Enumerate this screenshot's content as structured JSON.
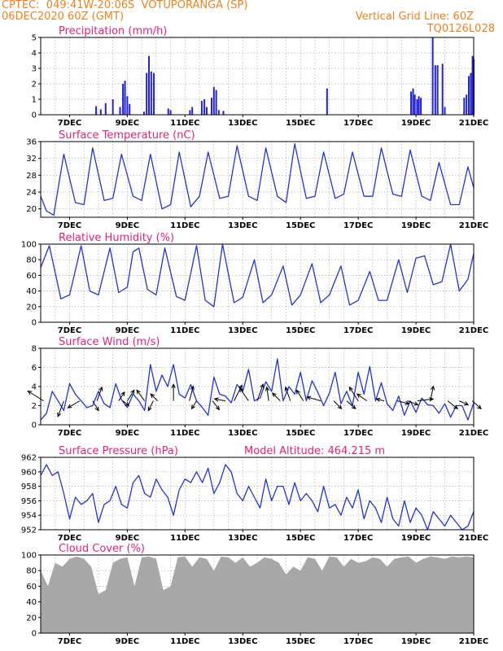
{
  "header": {
    "line1": "CPTEC:  049:41W-20:06S  VOTUPORANGA (SP)",
    "line2": "06DEC2020 60Z (GMT)",
    "grid_note": "Vertical Grid Line: 60Z",
    "code": "TQ0126L028"
  },
  "colors": {
    "header": "#f08020",
    "title": "#e8207a",
    "line": "#2233dd",
    "bar": "#2222dd",
    "cloud": "#a8a8a8"
  },
  "chart_data": [
    {
      "type": "bar",
      "title": "Precipitation (mm/h)",
      "ylim": [
        0,
        5
      ],
      "yticks": [
        "0",
        "1",
        "2",
        "3",
        "4",
        "5"
      ],
      "xticks": [
        "7DEC",
        "9DEC",
        "11DEC",
        "13DEC",
        "15DEC",
        "17DEC",
        "19DEC",
        "21DEC"
      ],
      "bars": [
        [
          1.92,
          0.55
        ],
        [
          2.08,
          0.35
        ],
        [
          2.25,
          0.75
        ],
        [
          2.5,
          1.0
        ],
        [
          2.75,
          0.5
        ],
        [
          2.85,
          2.0
        ],
        [
          2.92,
          2.2
        ],
        [
          3.0,
          1.2
        ],
        [
          3.08,
          0.7
        ],
        [
          3.58,
          0.2
        ],
        [
          3.67,
          2.7
        ],
        [
          3.75,
          3.8
        ],
        [
          3.83,
          2.8
        ],
        [
          3.92,
          2.7
        ],
        [
          4.42,
          0.4
        ],
        [
          4.5,
          0.3
        ],
        [
          5.17,
          0.3
        ],
        [
          5.25,
          0.5
        ],
        [
          5.58,
          0.9
        ],
        [
          5.67,
          1.0
        ],
        [
          5.75,
          0.5
        ],
        [
          5.92,
          1.1
        ],
        [
          6.0,
          1.8
        ],
        [
          6.08,
          1.6
        ],
        [
          6.17,
          0.3
        ],
        [
          6.33,
          0.25
        ],
        [
          9.92,
          1.7
        ],
        [
          12.83,
          1.5
        ],
        [
          12.9,
          1.7
        ],
        [
          12.96,
          1.3
        ],
        [
          13.04,
          1.0
        ],
        [
          13.1,
          1.2
        ],
        [
          13.17,
          1.1
        ],
        [
          13.58,
          5.0
        ],
        [
          13.67,
          3.2
        ],
        [
          13.75,
          3.2
        ],
        [
          13.92,
          3.3
        ],
        [
          14.0,
          0.5
        ],
        [
          14.67,
          1.1
        ],
        [
          14.75,
          1.3
        ],
        [
          14.83,
          2.5
        ],
        [
          14.9,
          2.7
        ],
        [
          14.96,
          3.8
        ],
        [
          15.0,
          3.6
        ]
      ]
    },
    {
      "type": "line",
      "title": "Surface Temperature (nC)",
      "ylim": [
        18,
        36
      ],
      "yticks": [
        "20",
        "24",
        "28",
        "32",
        "36"
      ],
      "xticks": [
        "7DEC",
        "9DEC",
        "11DEC",
        "13DEC",
        "15DEC",
        "17DEC",
        "19DEC",
        "21DEC"
      ],
      "series": [
        {
          "x": [
            0,
            0.2,
            0.45,
            0.8,
            1.2,
            1.5,
            1.8,
            2.2,
            2.5,
            2.8,
            3.2,
            3.5,
            3.8,
            4.2,
            4.5,
            4.8,
            5.2,
            5.5,
            5.8,
            6.2,
            6.5,
            6.8,
            7.2,
            7.5,
            7.8,
            8.2,
            8.5,
            8.8,
            9.2,
            9.5,
            9.8,
            10.2,
            10.5,
            10.8,
            11.2,
            11.5,
            11.8,
            12.2,
            12.5,
            12.8,
            13.2,
            13.5,
            13.8,
            14.2,
            14.5,
            14.8,
            15.0
          ],
          "y": [
            23,
            19.5,
            18.5,
            33,
            21.5,
            21,
            34.5,
            22,
            22.5,
            33,
            23,
            22,
            33,
            20,
            21,
            33.5,
            20.5,
            23,
            33.5,
            22.5,
            23,
            35,
            23,
            22,
            34.5,
            23,
            21.5,
            35.5,
            22.5,
            23,
            33.5,
            22.5,
            23.5,
            33.5,
            23,
            23,
            34.5,
            23.5,
            23,
            34,
            23,
            22,
            31,
            21,
            21,
            30,
            25
          ]
        }
      ]
    },
    {
      "type": "line",
      "title": "Relative Humidity (%)",
      "ylim": [
        0,
        100
      ],
      "yticks": [
        "0",
        "20",
        "40",
        "60",
        "80",
        "100"
      ],
      "xticks": [
        "7DEC",
        "9DEC",
        "11DEC",
        "13DEC",
        "15DEC",
        "17DEC",
        "19DEC",
        "21DEC"
      ],
      "series": [
        {
          "x": [
            0,
            0.3,
            0.7,
            1.0,
            1.4,
            1.7,
            2.0,
            2.4,
            2.7,
            3.0,
            3.2,
            3.4,
            3.7,
            4.0,
            4.3,
            4.7,
            5.0,
            5.4,
            5.7,
            6.0,
            6.3,
            6.7,
            7.0,
            7.4,
            7.7,
            8.0,
            8.4,
            8.7,
            9.0,
            9.4,
            9.7,
            10.0,
            10.4,
            10.7,
            11.0,
            11.4,
            11.7,
            12.0,
            12.4,
            12.7,
            13.0,
            13.3,
            13.6,
            13.9,
            14.2,
            14.5,
            14.8,
            15.0
          ],
          "y": [
            70,
            98,
            30,
            35,
            98,
            40,
            35,
            95,
            38,
            45,
            90,
            95,
            42,
            35,
            95,
            33,
            28,
            98,
            28,
            20,
            100,
            25,
            32,
            80,
            25,
            35,
            72,
            22,
            35,
            75,
            25,
            35,
            72,
            22,
            28,
            65,
            28,
            28,
            80,
            38,
            82,
            85,
            48,
            52,
            100,
            40,
            55,
            88
          ]
        }
      ]
    },
    {
      "type": "line",
      "title": "Surface Wind (m/s)",
      "ylim": [
        0,
        8
      ],
      "yticks": [
        "0",
        "2",
        "4",
        "6",
        "8"
      ],
      "xticks": [
        "7DEC",
        "9DEC",
        "11DEC",
        "13DEC",
        "15DEC",
        "17DEC",
        "19DEC",
        "21DEC"
      ],
      "series": [
        {
          "x": [
            0,
            0.2,
            0.4,
            0.6,
            0.8,
            1.0,
            1.2,
            1.4,
            1.6,
            1.8,
            2.0,
            2.2,
            2.4,
            2.6,
            2.8,
            3.0,
            3.2,
            3.4,
            3.6,
            3.8,
            4.0,
            4.2,
            4.4,
            4.6,
            4.8,
            5.0,
            5.2,
            5.4,
            5.6,
            5.8,
            6.0,
            6.2,
            6.4,
            6.6,
            6.8,
            7.0,
            7.2,
            7.4,
            7.6,
            7.8,
            8.0,
            8.2,
            8.4,
            8.6,
            8.8,
            9.0,
            9.2,
            9.4,
            9.6,
            9.8,
            10.0,
            10.2,
            10.4,
            10.6,
            10.8,
            11.0,
            11.2,
            11.4,
            11.6,
            11.8,
            12.0,
            12.2,
            12.4,
            12.6,
            12.8,
            13.0,
            13.2,
            13.4,
            13.6,
            13.8,
            14.0,
            14.2,
            14.4,
            14.6,
            14.8,
            15.0
          ],
          "y": [
            0.5,
            1.2,
            3.5,
            2.5,
            1.5,
            4.3,
            3.2,
            2.5,
            1.8,
            2.0,
            3.5,
            2.2,
            1.8,
            4.3,
            2.6,
            1.8,
            3.2,
            2.5,
            1.5,
            6.3,
            3.5,
            5.2,
            4.0,
            6.3,
            3.2,
            2.8,
            4.2,
            2.5,
            1.8,
            1.0,
            5.0,
            3.2,
            3.0,
            2.3,
            4.2,
            3.5,
            5.8,
            2.5,
            2.8,
            4.5,
            3.5,
            6.9,
            2.5,
            4.0,
            3.2,
            5.5,
            2.5,
            4.6,
            3.4,
            2.0,
            3.3,
            5.5,
            2.2,
            3.5,
            2.0,
            5.5,
            3.2,
            6.1,
            2.5,
            4.4,
            2.2,
            1.5,
            3.0,
            1.0,
            2.5,
            1.3,
            2.8,
            2.1,
            2.0,
            1.2,
            2.2,
            0.8,
            2.0,
            2.0,
            0.5,
            2.3
          ]
        }
      ],
      "wind_vectors": [
        [
          0.1,
          -0.8,
          -0.5
        ],
        [
          0.8,
          -0.3,
          0.8
        ],
        [
          1.35,
          -0.6,
          0.35
        ],
        [
          1.8,
          0.3,
          0.5
        ],
        [
          1.95,
          0.25,
          -0.7
        ],
        [
          2.7,
          0.3,
          -0.45
        ],
        [
          2.85,
          0.3,
          0.25
        ],
        [
          3.0,
          0.35,
          -0.55
        ],
        [
          3.6,
          -0.4,
          -0.55
        ],
        [
          3.9,
          -0.25,
          0.5
        ],
        [
          4.05,
          -0.35,
          -0.35
        ],
        [
          4.6,
          0.0,
          -0.85
        ],
        [
          5.15,
          0.2,
          -0.75
        ],
        [
          5.4,
          -0.25,
          0.4
        ],
        [
          5.95,
          0.35,
          0.45
        ],
        [
          6.4,
          -0.55,
          -0.1
        ],
        [
          6.7,
          0.4,
          -0.8
        ],
        [
          7.2,
          -0.45,
          -0.65
        ],
        [
          7.5,
          0.3,
          -0.85
        ],
        [
          7.9,
          -0.1,
          -0.7
        ],
        [
          8.3,
          -0.4,
          -0.4
        ],
        [
          8.65,
          -0.25,
          -0.7
        ],
        [
          9.1,
          -0.35,
          -0.55
        ],
        [
          9.7,
          -0.7,
          -0.2
        ],
        [
          10.15,
          0.4,
          0.4
        ],
        [
          10.6,
          0.45,
          0.4
        ],
        [
          11.0,
          -0.45,
          -0.7
        ],
        [
          11.3,
          -0.5,
          -0.35
        ],
        [
          11.9,
          -0.4,
          -0.1
        ],
        [
          12.35,
          0.6,
          0.15
        ],
        [
          12.7,
          0.55,
          0.2
        ],
        [
          13.05,
          0.8,
          -0.1
        ],
        [
          13.5,
          0.15,
          -0.75
        ],
        [
          14.1,
          0.5,
          0.4
        ],
        [
          14.5,
          0.45,
          0.2
        ],
        [
          14.95,
          0.45,
          0.4
        ]
      ]
    },
    {
      "type": "line",
      "title": "Surface Pressure (hPa)",
      "subtitle": "Model Altitude: 464.215 m",
      "ylim": [
        952,
        962
      ],
      "yticks": [
        "952",
        "954",
        "956",
        "958",
        "960",
        "962"
      ],
      "xticks": [
        "7DEC",
        "9DEC",
        "11DEC",
        "13DEC",
        "15DEC",
        "17DEC",
        "19DEC",
        "21DEC"
      ],
      "series": [
        {
          "x": [
            0,
            0.2,
            0.4,
            0.6,
            0.8,
            1.0,
            1.2,
            1.4,
            1.6,
            1.8,
            2.0,
            2.2,
            2.4,
            2.6,
            2.8,
            3.0,
            3.2,
            3.4,
            3.6,
            3.8,
            4.0,
            4.2,
            4.4,
            4.6,
            4.8,
            5.0,
            5.2,
            5.4,
            5.6,
            5.8,
            6.0,
            6.2,
            6.4,
            6.6,
            6.8,
            7.0,
            7.2,
            7.4,
            7.6,
            7.8,
            8.0,
            8.2,
            8.4,
            8.6,
            8.8,
            9.0,
            9.2,
            9.4,
            9.6,
            9.8,
            10.0,
            10.2,
            10.4,
            10.6,
            10.8,
            11.0,
            11.2,
            11.4,
            11.6,
            11.8,
            12.0,
            12.2,
            12.4,
            12.6,
            12.8,
            13.0,
            13.2,
            13.4,
            13.6,
            13.8,
            14.0,
            14.2,
            14.4,
            14.6,
            14.8,
            15.0
          ],
          "y": [
            959.5,
            961,
            959.5,
            960,
            957,
            953.5,
            956.5,
            955.5,
            956,
            957,
            953,
            955.5,
            956,
            958,
            955.5,
            955,
            958.5,
            959.5,
            957,
            956.5,
            959,
            957.5,
            956.5,
            954,
            957.5,
            959,
            958.5,
            960,
            958.5,
            960.5,
            957,
            958.5,
            961,
            960,
            957,
            956,
            958,
            956.5,
            955,
            959,
            956,
            958,
            958,
            955.5,
            958.5,
            956,
            957,
            956,
            954.5,
            958,
            955,
            955.5,
            954,
            956.5,
            955,
            957.5,
            953.5,
            956,
            955,
            953,
            956.5,
            953.5,
            952.5,
            956,
            953,
            955,
            954,
            952,
            954.5,
            953.5,
            952.5,
            954,
            953,
            952,
            952.5,
            954.5
          ]
        }
      ]
    },
    {
      "type": "area",
      "title": "Cloud Cover (%)",
      "ylim": [
        0,
        100
      ],
      "yticks": [
        "0",
        "20",
        "40",
        "60",
        "80",
        "100"
      ],
      "xticks": [
        "7DEC",
        "9DEC",
        "11DEC",
        "13DEC",
        "15DEC",
        "17DEC",
        "19DEC",
        "21DEC"
      ],
      "series": [
        {
          "x": [
            0,
            0.25,
            0.5,
            0.75,
            1.0,
            1.25,
            1.5,
            1.75,
            2.0,
            2.25,
            2.5,
            2.75,
            3.0,
            3.25,
            3.5,
            3.75,
            4.0,
            4.25,
            4.5,
            4.75,
            5.0,
            5.25,
            5.5,
            5.75,
            6.0,
            6.25,
            6.5,
            6.75,
            7.0,
            7.25,
            7.5,
            7.75,
            8.0,
            8.25,
            8.5,
            8.75,
            9.0,
            9.25,
            9.5,
            9.75,
            10.0,
            10.25,
            10.5,
            10.75,
            11.0,
            11.25,
            11.5,
            11.75,
            12.0,
            12.25,
            12.5,
            12.75,
            13.0,
            13.25,
            13.5,
            13.75,
            14.0,
            14.25,
            14.5,
            14.75,
            15.0
          ],
          "y": [
            80,
            60,
            90,
            85,
            95,
            98,
            95,
            85,
            50,
            55,
            90,
            95,
            97,
            60,
            97,
            98,
            95,
            55,
            60,
            97,
            98,
            85,
            97,
            95,
            80,
            98,
            97,
            90,
            97,
            85,
            90,
            97,
            95,
            90,
            75,
            85,
            80,
            97,
            95,
            80,
            98,
            97,
            85,
            95,
            90,
            92,
            97,
            95,
            85,
            95,
            97,
            98,
            90,
            95,
            98,
            97,
            95,
            98,
            97,
            98,
            97
          ]
        }
      ]
    }
  ]
}
